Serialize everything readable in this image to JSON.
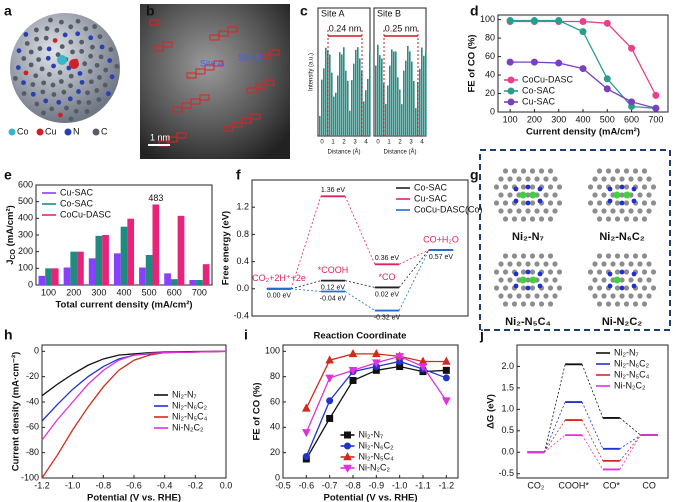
{
  "panel_letters": [
    "a",
    "b",
    "c",
    "d",
    "e",
    "f",
    "g",
    "h",
    "i",
    "j"
  ],
  "images": {
    "a": {
      "legend": [
        "Co",
        "Cu",
        "N",
        "C"
      ]
    },
    "b": {
      "site_a": "Site A",
      "site_b": "Site B",
      "scale": "1 nm"
    },
    "c": {
      "panels": [
        "Site A",
        "Site B"
      ],
      "spacings": [
        "0.24 nm",
        "0.25 nm"
      ],
      "ylabel": "Intensity (a.u.)",
      "xlabel": "Distance (Å)",
      "xticks": [
        "0",
        "1",
        "2",
        "3",
        "4"
      ]
    },
    "g": {
      "labels": [
        "Ni₂-N₇",
        "Ni₂-N₆C₂",
        "Ni₂-N₅C₄",
        "Ni-N₂C₂"
      ]
    }
  },
  "chart_data": [
    {
      "type": "line",
      "x": [
        100,
        200,
        300,
        400,
        500,
        600,
        700
      ],
      "xlim": [
        50,
        750
      ],
      "xticks": [
        100,
        200,
        300,
        400,
        500,
        600,
        700
      ],
      "ylim": [
        0,
        105
      ],
      "yticks": [
        0,
        20,
        40,
        60,
        80,
        100
      ],
      "xlabel": "Current density (mA/cm²)",
      "ylabel": "FE of CO (%)",
      "legend": "lower left",
      "series": [
        {
          "name": "CoCu-DASC",
          "color": "#e8408a",
          "marker": "circle",
          "values": [
            98,
            98,
            98,
            98,
            96,
            69,
            18
          ]
        },
        {
          "name": "Co-SAC",
          "color": "#2a9d8f",
          "marker": "circle",
          "values": [
            99,
            99,
            99,
            87,
            36,
            6,
            4
          ]
        },
        {
          "name": "Cu-SAC",
          "color": "#7b3fbf",
          "marker": "circle",
          "values": [
            54,
            54,
            53,
            47,
            25,
            11,
            4
          ]
        }
      ]
    },
    {
      "type": "bar",
      "categories": [
        "100",
        "200",
        "300",
        "400",
        "500",
        "600",
        "700"
      ],
      "ylim": [
        0,
        600
      ],
      "yticks": [
        0,
        100,
        200,
        300,
        400,
        500,
        600
      ],
      "xlabel": "Total current density (mA/cm²)",
      "ylabel": [
        "J",
        "CO",
        " (mA/cm²)"
      ],
      "legend": "upper left",
      "series": [
        {
          "name": "Cu-SAC",
          "color": "#8a3ffc",
          "values": [
            55,
            105,
            160,
            190,
            105,
            70,
            30
          ]
        },
        {
          "name": "Co-SAC",
          "color": "#1f8a80",
          "values": [
            100,
            200,
            295,
            350,
            180,
            35,
            30
          ]
        },
        {
          "name": "CoCu-DASC",
          "color": "#e8247a",
          "values": [
            100,
            200,
            300,
            398,
            483,
            415,
            125
          ],
          "value_labels": [
            null,
            null,
            null,
            null,
            "483",
            null,
            null
          ]
        }
      ]
    },
    {
      "type": "energy",
      "categories": [
        "CO₂+2H⁺+2e",
        "*COOH",
        "*CO",
        "CO+H₂O"
      ],
      "ylim": [
        -0.4,
        1.6
      ],
      "yticks": [
        -0.4,
        {
          "value": 0,
          "label": "0.0"
        },
        0.4,
        0.8,
        1.2
      ],
      "xlabel": "Reaction Coordinate",
      "ylabel": "Free energy (eV)",
      "legend": "upper right",
      "series": [
        {
          "name": "Co-SAC",
          "color": "#222222",
          "values": [
            0,
            0.12,
            0.02,
            0.57
          ],
          "value_labels": [
            "0.00 eV",
            "0.12 eV",
            "0.02 eV",
            "0.57 eV"
          ]
        },
        {
          "name": "Cu-SAC",
          "color": "#e0245e",
          "values": [
            0,
            1.36,
            0.36,
            0.57
          ],
          "value_labels": [
            null,
            "1.36 eV",
            "0.36 eV",
            null
          ]
        },
        {
          "name": "CoCu-DASC(Co)",
          "color": "#1f6fd0",
          "values": [
            0,
            -0.04,
            -0.32,
            0.57
          ],
          "value_labels": [
            null,
            "-0.04 eV",
            "-0.32 eV",
            null
          ]
        }
      ]
    },
    {
      "type": "line",
      "x": [
        -1.2,
        -1.1,
        -1.0,
        -0.9,
        -0.8,
        -0.7,
        -0.6,
        -0.5,
        -0.4,
        -0.2,
        0
      ],
      "xlim": [
        -1.2,
        0
      ],
      "xticks": [
        -1.2,
        {
          "value": -1,
          "label": "-1.0"
        },
        -0.8,
        -0.6,
        -0.4,
        -0.2,
        {
          "value": 0,
          "label": "0.0"
        }
      ],
      "ylim": [
        -100,
        5
      ],
      "yticks": [
        -100,
        -80,
        -60,
        -40,
        -20,
        0
      ],
      "xlabel": "Potential (V vs. RHE)",
      "ylabel": "Current density (mA·cm⁻²)",
      "legend": "center right",
      "series": [
        {
          "name": "Ni₂-N₇",
          "color": "#111111",
          "values": [
            -35,
            -26,
            -18,
            -11,
            -6,
            -3,
            -2,
            -1,
            -0.5,
            -0.2,
            0
          ]
        },
        {
          "name": "Ni₂-N₆C₂",
          "color": "#2233cc",
          "values": [
            -55,
            -42,
            -30,
            -20,
            -12,
            -6,
            -3,
            -2,
            -1,
            -0.5,
            0
          ]
        },
        {
          "name": "Ni₂-N₅C₄",
          "color": "#d42a1e",
          "values": [
            -100,
            -82,
            -62,
            -44,
            -28,
            -15,
            -7,
            -3,
            -1,
            -0.5,
            0
          ]
        },
        {
          "name": "Ni-N₂C₂",
          "color": "#e030e0",
          "values": [
            -70,
            -54,
            -40,
            -26,
            -15,
            -7,
            -3,
            -1.5,
            -1,
            -0.5,
            0
          ]
        }
      ]
    },
    {
      "type": "line",
      "x": [
        -0.6,
        -0.7,
        -0.8,
        -0.9,
        -1.0,
        -1.1,
        -1.2
      ],
      "xlim": [
        -0.5,
        -1.25
      ],
      "xticks": [
        -0.5,
        -0.6,
        -0.7,
        -0.8,
        -0.9,
        {
          "value": -1,
          "label": "-1.0"
        },
        -1.1,
        -1.2
      ],
      "ylim": [
        0,
        105
      ],
      "yticks": [
        0,
        20,
        40,
        60,
        80,
        100
      ],
      "xlabel": "Potential (V vs. RHE)",
      "ylabel": "FE of CO (%)",
      "legend": "lower center",
      "series": [
        {
          "name": "Ni₂-N₇",
          "color": "#111111",
          "marker": "square",
          "values": [
            15,
            47,
            77,
            85,
            88,
            84,
            85
          ]
        },
        {
          "name": "Ni₂-N₆C₂",
          "color": "#2233cc",
          "marker": "circle",
          "values": [
            17,
            61,
            84,
            88,
            92,
            86,
            79
          ]
        },
        {
          "name": "Ni₂-N₅C₄",
          "color": "#d42a1e",
          "marker": "triangle",
          "values": [
            55,
            93,
            98,
            98,
            96,
            92,
            92
          ]
        },
        {
          "name": "Ni-N₂C₂",
          "color": "#e030e0",
          "marker": "triangle-down",
          "values": [
            36,
            79,
            85,
            91,
            96,
            88,
            61
          ]
        }
      ]
    },
    {
      "type": "energy",
      "categories": [
        "CO₂",
        "COOH*",
        "CO*",
        "CO"
      ],
      "ylim": [
        -0.6,
        2.5
      ],
      "yticks": [
        -0.5,
        {
          "value": 0,
          "label": "0.0"
        },
        0.5,
        {
          "value": 1,
          "label": "1.0"
        },
        1.5,
        {
          "value": 2,
          "label": "2.0"
        }
      ],
      "ylabel": "ΔG (eV)",
      "legend": "upper right",
      "series": [
        {
          "name": "Ni₂-N₇",
          "color": "#111111",
          "values": [
            0,
            2.05,
            0.8,
            0.4
          ]
        },
        {
          "name": "Ni₂-N₆C₂",
          "color": "#2233cc",
          "values": [
            0,
            1.17,
            0.08,
            0.4
          ]
        },
        {
          "name": "Ni₂-N₅C₄",
          "color": "#d42a1e",
          "values": [
            0,
            0.75,
            -0.2,
            0.4
          ]
        },
        {
          "name": "Ni-N₂C₂",
          "color": "#e030e0",
          "values": [
            0,
            0.4,
            -0.4,
            0.4
          ]
        }
      ]
    }
  ]
}
